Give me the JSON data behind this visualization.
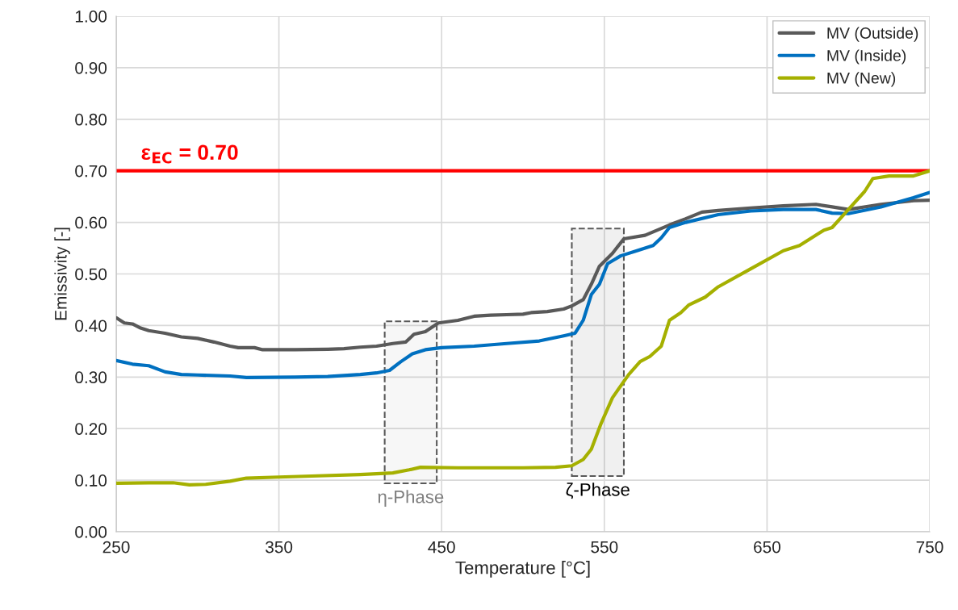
{
  "chart_data": {
    "type": "line",
    "xlabel": "Temperature [°C]",
    "ylabel": "Emissivity [-]",
    "xlim": [
      250,
      750
    ],
    "xticks": [
      250,
      350,
      450,
      550,
      650,
      750
    ],
    "ylim": [
      0,
      1
    ],
    "yticks": [
      {
        "value": 0,
        "label": "0.00"
      },
      {
        "value": 0.1,
        "label": "0.10"
      },
      {
        "value": 0.2,
        "label": "0.20"
      },
      {
        "value": 0.3,
        "label": "0.30"
      },
      {
        "value": 0.4,
        "label": "0.40"
      },
      {
        "value": 0.5,
        "label": "0.50"
      },
      {
        "value": 0.6,
        "label": "0.60"
      },
      {
        "value": 0.7,
        "label": "0.70"
      },
      {
        "value": 0.8,
        "label": "0.80"
      },
      {
        "value": 0.9,
        "label": "0.90"
      },
      {
        "value": 1,
        "label": "1.00"
      }
    ],
    "grid": true,
    "legend": "top right",
    "marker": "none",
    "line_style": "solid",
    "series": [
      {
        "name": "MV (Outside)",
        "color": "#595959",
        "x": [
          250,
          255,
          260,
          265,
          270,
          280,
          290,
          300,
          310,
          320,
          325,
          335,
          340,
          360,
          380,
          390,
          400,
          410,
          420,
          428,
          433,
          440,
          448,
          460,
          470,
          480,
          490,
          500,
          505,
          515,
          525,
          530,
          537,
          542,
          547,
          555,
          562,
          575,
          590,
          600,
          610,
          620,
          640,
          660,
          680,
          690,
          700,
          720,
          740,
          750
        ],
        "values": [
          0.415,
          0.405,
          0.403,
          0.395,
          0.39,
          0.385,
          0.378,
          0.375,
          0.368,
          0.36,
          0.357,
          0.357,
          0.353,
          0.353,
          0.354,
          0.355,
          0.358,
          0.36,
          0.365,
          0.368,
          0.383,
          0.388,
          0.405,
          0.41,
          0.418,
          0.42,
          0.421,
          0.422,
          0.425,
          0.427,
          0.432,
          0.438,
          0.45,
          0.48,
          0.515,
          0.54,
          0.568,
          0.575,
          0.595,
          0.607,
          0.62,
          0.623,
          0.628,
          0.632,
          0.635,
          0.63,
          0.625,
          0.635,
          0.642,
          0.643
        ]
      },
      {
        "name": "MV (Inside)",
        "color": "#0070c0",
        "x": [
          250,
          260,
          270,
          280,
          290,
          300,
          320,
          330,
          360,
          380,
          400,
          410,
          418,
          425,
          432,
          440,
          450,
          470,
          490,
          510,
          525,
          532,
          537,
          542,
          547,
          552,
          560,
          570,
          580,
          585,
          590,
          600,
          620,
          640,
          660,
          680,
          690,
          700,
          720,
          740,
          750
        ],
        "values": [
          0.332,
          0.325,
          0.322,
          0.31,
          0.305,
          0.304,
          0.302,
          0.299,
          0.3,
          0.301,
          0.305,
          0.308,
          0.313,
          0.33,
          0.345,
          0.353,
          0.357,
          0.36,
          0.365,
          0.37,
          0.38,
          0.385,
          0.41,
          0.46,
          0.48,
          0.52,
          0.535,
          0.545,
          0.555,
          0.57,
          0.59,
          0.6,
          0.615,
          0.622,
          0.625,
          0.625,
          0.618,
          0.617,
          0.63,
          0.648,
          0.658
        ]
      },
      {
        "name": "MV (New)",
        "color": "#a5b000",
        "x": [
          250,
          270,
          285,
          295,
          305,
          320,
          330,
          350,
          370,
          400,
          420,
          430,
          437,
          460,
          480,
          500,
          520,
          530,
          537,
          542,
          548,
          555,
          565,
          572,
          578,
          585,
          590,
          597,
          602,
          612,
          620,
          640,
          660,
          670,
          680,
          685,
          690,
          700,
          710,
          715,
          725,
          740,
          750
        ],
        "values": [
          0.094,
          0.095,
          0.095,
          0.091,
          0.092,
          0.098,
          0.104,
          0.106,
          0.108,
          0.111,
          0.114,
          0.12,
          0.125,
          0.124,
          0.124,
          0.124,
          0.125,
          0.128,
          0.14,
          0.16,
          0.21,
          0.26,
          0.305,
          0.33,
          0.34,
          0.36,
          0.41,
          0.425,
          0.44,
          0.455,
          0.475,
          0.51,
          0.545,
          0.555,
          0.575,
          0.585,
          0.59,
          0.625,
          0.66,
          0.685,
          0.69,
          0.69,
          0.7
        ]
      }
    ],
    "ref_lines": [
      {
        "axis": "y",
        "value": 0.7,
        "label": "ε$_{EC}$ = 0.70",
        "color": "#ff0000",
        "line_style": "solid"
      }
    ],
    "bands": [
      {
        "axis": "x",
        "from": 415,
        "to": 447,
        "label": "η-Phase",
        "color": "#7f7f7f"
      },
      {
        "axis": "x",
        "from": 530,
        "to": 562,
        "label": "ζ-Phase",
        "color": "#000000"
      }
    ]
  }
}
